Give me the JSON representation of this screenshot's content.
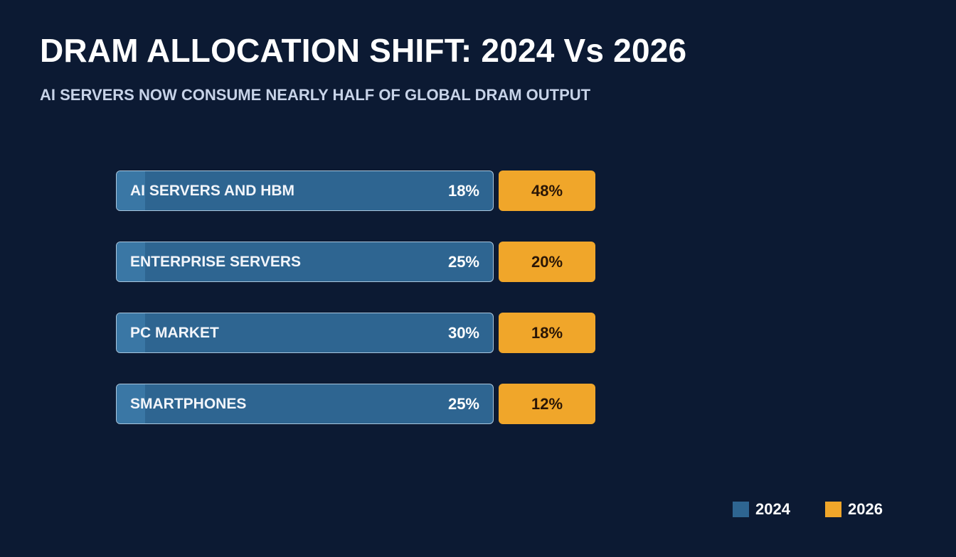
{
  "chart_data": {
    "type": "bar",
    "title": "DRAM ALLOCATION SHIFT: 2024 Vs 2026",
    "subtitle": "AI SERVERS NOW CONSUME NEARLY HALF OF GLOBAL DRAM OUTPUT",
    "categories": [
      "AI SERVERS AND HBM",
      "ENTERPRISE SERVERS",
      "PC MARKET",
      "SMARTPHONES"
    ],
    "series": [
      {
        "name": "2024",
        "values": [
          18,
          25,
          30,
          25
        ],
        "labels": [
          "18%",
          "25%",
          "30%",
          "25%"
        ],
        "color": "#2e6591"
      },
      {
        "name": "2026",
        "values": [
          48,
          20,
          18,
          12
        ],
        "labels": [
          "48%",
          "20%",
          "18%",
          "12%"
        ],
        "color": "#f0a62a"
      }
    ],
    "unit": "%",
    "legend_position": "bottom-right",
    "grid": false
  }
}
